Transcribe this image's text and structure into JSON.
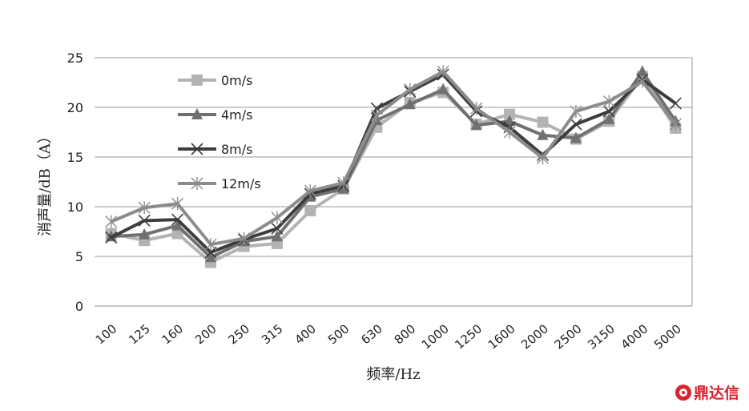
{
  "chart_data": {
    "type": "line",
    "xlabel": "频率/Hz",
    "ylabel": "消声量/dB（A）",
    "ylim": [
      0,
      25
    ],
    "yticks": [
      0,
      5,
      10,
      15,
      20,
      25
    ],
    "grid": true,
    "legend_position": "top-left",
    "categories": [
      "100",
      "125",
      "160",
      "200",
      "250",
      "315",
      "400",
      "500",
      "630",
      "800",
      "1000",
      "1250",
      "1600",
      "2000",
      "2500",
      "3150",
      "4000",
      "5000"
    ],
    "series": [
      {
        "name": "0m/s",
        "marker": "square",
        "color": "#b3b3b3",
        "values": [
          7.3,
          6.6,
          7.3,
          4.4,
          6.0,
          6.3,
          9.6,
          11.8,
          18.0,
          20.5,
          21.5,
          18.3,
          19.3,
          18.5,
          16.8,
          18.6,
          23.1,
          17.9
        ]
      },
      {
        "name": "4m/s",
        "marker": "triangle",
        "color": "#707070",
        "values": [
          7.0,
          7.2,
          8.1,
          4.9,
          6.5,
          7.0,
          11.0,
          11.8,
          18.7,
          20.3,
          21.8,
          18.2,
          18.6,
          17.2,
          16.9,
          18.8,
          23.6,
          18.6
        ]
      },
      {
        "name": "8m/s",
        "marker": "x",
        "color": "#3d3d3d",
        "values": [
          6.9,
          8.6,
          8.7,
          5.4,
          6.7,
          7.8,
          11.3,
          12.1,
          19.9,
          21.6,
          23.3,
          19.6,
          18.0,
          15.2,
          18.3,
          19.6,
          22.8,
          20.4
        ]
      },
      {
        "name": "12m/s",
        "marker": "star",
        "color": "#8c8c8c",
        "values": [
          8.5,
          9.9,
          10.3,
          6.2,
          6.8,
          8.9,
          11.6,
          12.4,
          19.2,
          21.8,
          23.6,
          19.9,
          17.5,
          14.9,
          19.6,
          20.6,
          22.6,
          18.3
        ]
      }
    ]
  },
  "watermark": {
    "text": "鼎达信",
    "color": "#d9232d"
  }
}
